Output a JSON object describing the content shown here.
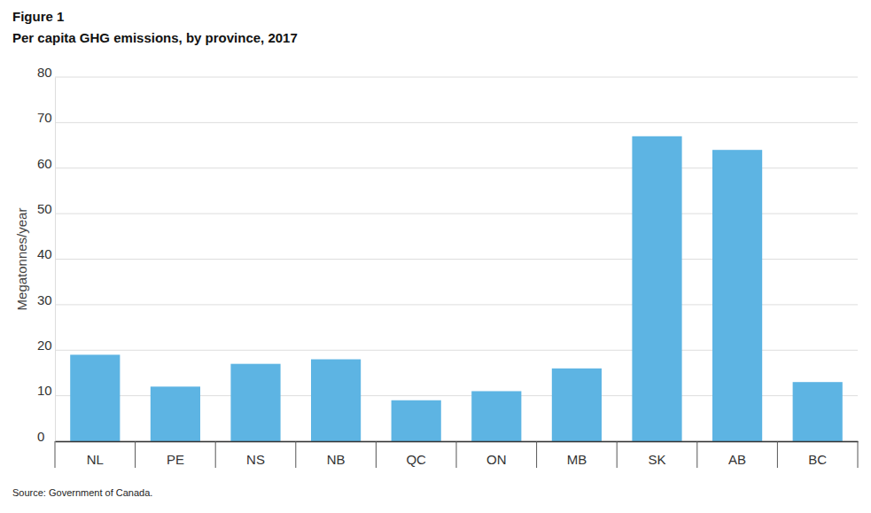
{
  "chart_data": {
    "type": "bar",
    "title": "Figure 1",
    "subtitle": "Per capita GHG emissions, by province, 2017",
    "ylabel": "Megatonnes/year",
    "source": "Source: Government of Canada.",
    "categories": [
      "NL",
      "PE",
      "NS",
      "NB",
      "QC",
      "ON",
      "MB",
      "SK",
      "AB",
      "BC"
    ],
    "values": [
      19,
      12,
      17,
      18,
      9,
      11,
      16,
      67,
      64,
      13
    ],
    "color": "#5db4e3",
    "ylim": [
      0,
      80
    ],
    "yticks": [
      0,
      10,
      20,
      30,
      40,
      50,
      60,
      70,
      80
    ],
    "grid": true
  }
}
